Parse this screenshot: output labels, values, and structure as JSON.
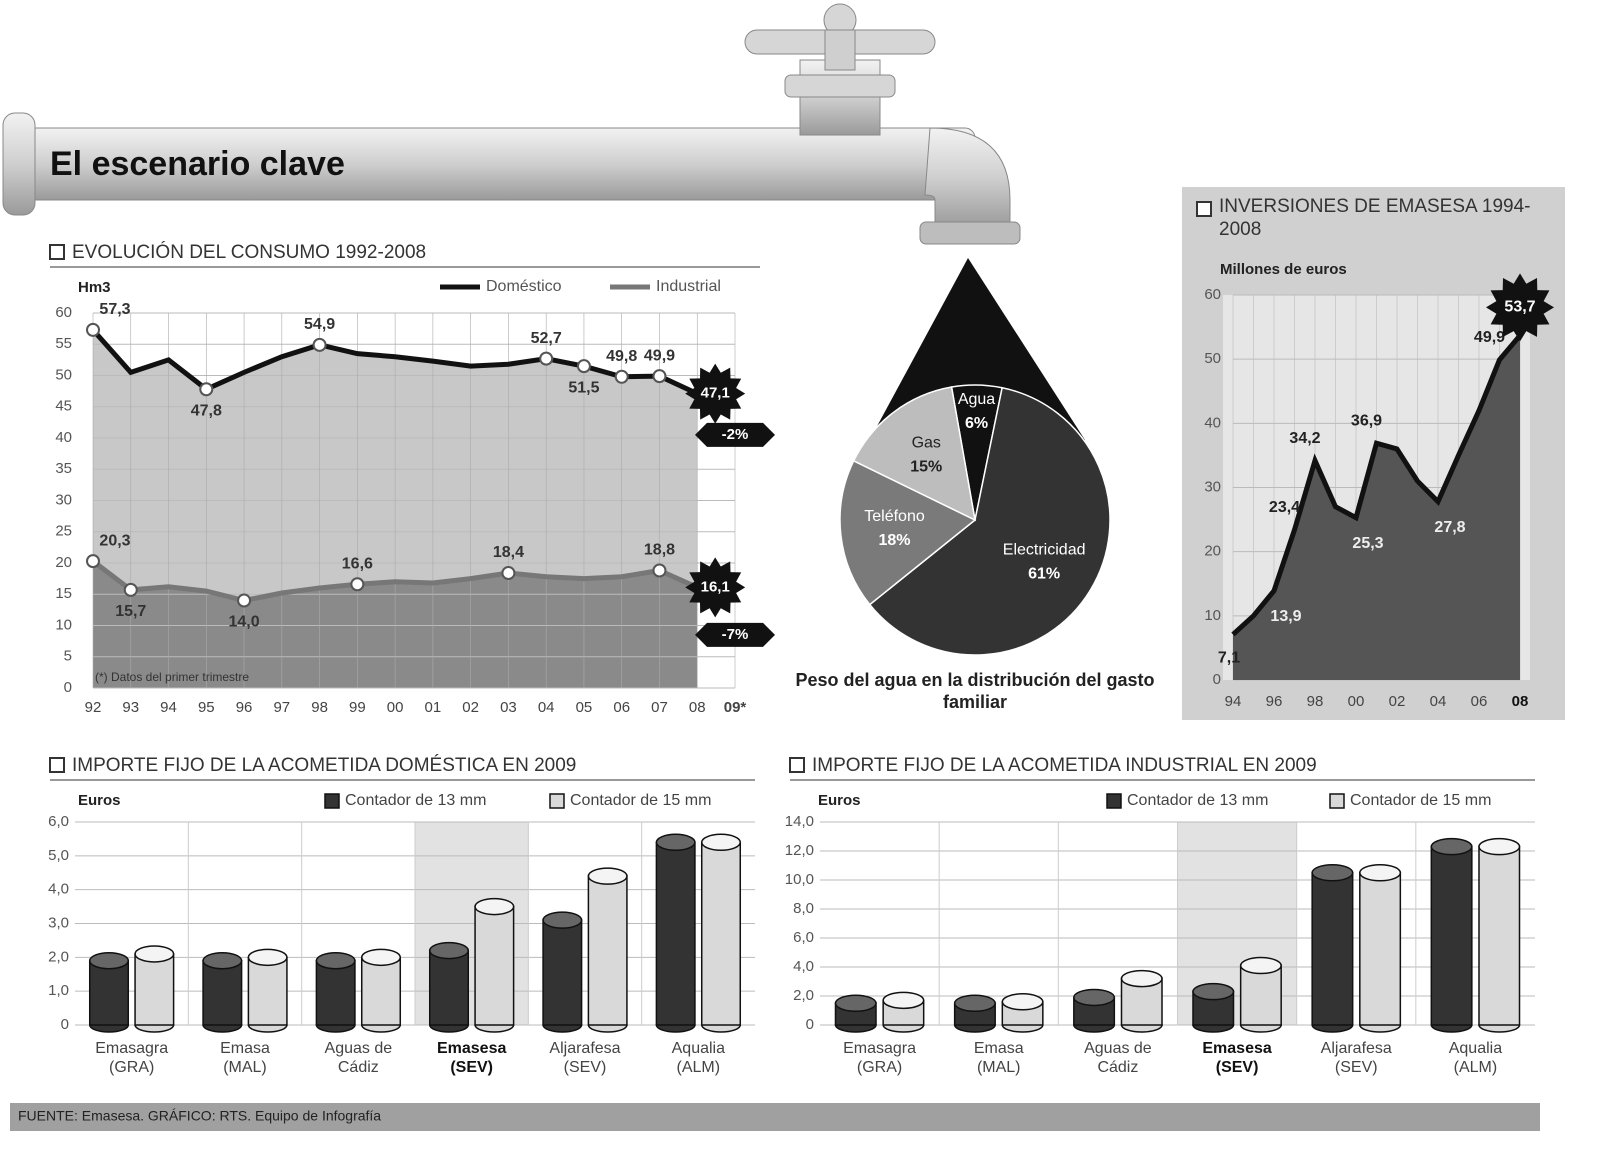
{
  "title": "El escenario clave",
  "footer": "FUENTE: Emasesa. GRÁFICO: RTS. Equipo de Infografía",
  "chart_data": [
    {
      "type": "line",
      "title": "EVOLUCIÓN DEL CONSUMO 1992-2008",
      "ylabel": "Hm3",
      "categories": [
        "92",
        "93",
        "94",
        "95",
        "96",
        "97",
        "98",
        "99",
        "00",
        "01",
        "02",
        "03",
        "04",
        "05",
        "06",
        "07",
        "08",
        "09*"
      ],
      "series": [
        {
          "name": "Doméstico",
          "color": "#111111",
          "fill": "#c8c8c8",
          "values": [
            57.3,
            50.5,
            52.5,
            47.8,
            50.5,
            53,
            54.9,
            53.5,
            53,
            52.3,
            51.5,
            51.8,
            52.7,
            51.5,
            49.8,
            49.9,
            47.1,
            null
          ],
          "value_labels": [
            "57,3",
            null,
            null,
            "47,8",
            null,
            null,
            "54,9",
            null,
            null,
            null,
            null,
            null,
            "52,7",
            "51,5",
            "49,8",
            "49,9",
            "47,1",
            null
          ]
        },
        {
          "name": "Industrial",
          "color": "#777777",
          "fill": "#8a8a8a",
          "values": [
            20.3,
            15.7,
            16.2,
            15.5,
            14.0,
            15.2,
            16,
            16.6,
            17,
            16.8,
            17.5,
            18.4,
            17.8,
            17.5,
            17.8,
            18.8,
            16.1,
            null
          ],
          "value_labels": [
            "20,3",
            "15,7",
            null,
            null,
            "14,0",
            null,
            null,
            "16,6",
            null,
            null,
            null,
            "18,4",
            null,
            null,
            null,
            "18,8",
            "16,1",
            null
          ]
        }
      ],
      "annotations": [
        "-2%",
        "-7%"
      ],
      "note": "(*) Datos del primer trimestre",
      "ylim": [
        0,
        60
      ],
      "yticks": [
        0,
        5,
        10,
        15,
        20,
        25,
        30,
        35,
        40,
        45,
        50,
        55,
        60
      ],
      "grid": true
    },
    {
      "type": "pie",
      "title": "Peso del agua en la distribución del gasto familiar",
      "categories": [
        "Agua",
        "Electricidad",
        "Teléfono",
        "Gas"
      ],
      "values": [
        6,
        61,
        18,
        15
      ],
      "value_labels": [
        "6%",
        "61%",
        "18%",
        "15%"
      ],
      "colors": [
        "#111111",
        "#333333",
        "#7a7a7a",
        "#bdbdbd"
      ]
    },
    {
      "type": "area",
      "title": "INVERSIONES DE EMASESA 1994-2008",
      "ylabel": "Millones de euros",
      "categories": [
        "94",
        null,
        "96",
        null,
        "98",
        null,
        "00",
        null,
        "02",
        null,
        "04",
        null,
        "06",
        null,
        "08"
      ],
      "values": [
        7.1,
        10,
        13.9,
        23.4,
        34.2,
        27,
        25.3,
        36.9,
        36,
        31,
        27.8,
        35,
        42,
        49.9,
        53.7
      ],
      "value_labels": [
        "7,1",
        null,
        "13,9",
        "23,4",
        "34,2",
        null,
        "25,3",
        "36,9",
        null,
        null,
        "27,8",
        null,
        null,
        "49,9",
        "53,7"
      ],
      "color": "#555555",
      "ylim": [
        0,
        60
      ],
      "yticks": [
        0,
        10,
        20,
        30,
        40,
        50,
        60
      ],
      "grid": true
    },
    {
      "type": "bar",
      "title": "IMPORTE FIJO DE LA ACOMETIDA DOMÉSTICA EN 2009",
      "ylabel": "Euros",
      "categories": [
        "Emasagra (GRA)",
        "Emasa (MAL)",
        "Aguas de Cádiz",
        "Emasesa (SEV)",
        "Aljarafesa (SEV)",
        "Aqualia (ALM)"
      ],
      "highlight": "Emasesa (SEV)",
      "series": [
        {
          "name": "Contador de 13 mm",
          "color": "#333333",
          "values": [
            1.9,
            1.9,
            1.9,
            2.2,
            3.1,
            5.4
          ]
        },
        {
          "name": "Contador de 15 mm",
          "color": "#d9d9d9",
          "values": [
            2.1,
            2.0,
            2.0,
            3.5,
            4.4,
            5.4
          ]
        }
      ],
      "ylim": [
        0,
        6
      ],
      "yticks": [
        0,
        {
          "value": 1,
          "label": "1,0"
        },
        {
          "value": 2,
          "label": "2,0"
        },
        {
          "value": 3,
          "label": "3,0"
        },
        {
          "value": 4,
          "label": "4,0"
        },
        {
          "value": 5,
          "label": "5,0"
        },
        {
          "value": 6,
          "label": "6,0"
        }
      ],
      "grid": true
    },
    {
      "type": "bar",
      "title": "IMPORTE FIJO DE LA ACOMETIDA INDUSTRIAL EN 2009",
      "ylabel": "Euros",
      "categories": [
        "Emasagra (GRA)",
        "Emasa (MAL)",
        "Aguas de Cádiz",
        "Emasesa (SEV)",
        "Aljarafesa (SEV)",
        "Aqualia (ALM)"
      ],
      "highlight": "Emasesa (SEV)",
      "series": [
        {
          "name": "Contador de 13 mm",
          "color": "#333333",
          "values": [
            1.5,
            1.5,
            1.9,
            2.3,
            10.5,
            12.3
          ]
        },
        {
          "name": "Contador de 15 mm",
          "color": "#d9d9d9",
          "values": [
            1.7,
            1.6,
            3.2,
            4.1,
            10.5,
            12.3
          ]
        }
      ],
      "ylim": [
        0,
        14
      ],
      "yticks": [
        0,
        {
          "value": 2,
          "label": "2,0"
        },
        {
          "value": 4,
          "label": "4,0"
        },
        {
          "value": 6,
          "label": "6,0"
        },
        {
          "value": 8,
          "label": "8,0"
        },
        {
          "value": 10,
          "label": "10,0"
        },
        {
          "value": 12,
          "label": "12,0"
        },
        {
          "value": 14,
          "label": "14,0"
        }
      ],
      "grid": true
    }
  ]
}
